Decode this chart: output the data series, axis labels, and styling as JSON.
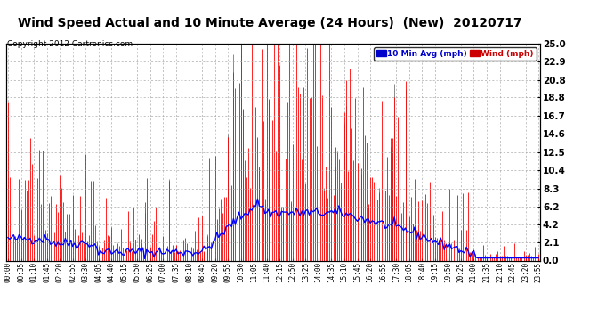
{
  "title": "Wind Speed Actual and 10 Minute Average (24 Hours)  (New)  20120717",
  "copyright": "Copyright 2012 Cartronics.com",
  "legend_labels": [
    "10 Min Avg (mph)",
    "Wind (mph)"
  ],
  "legend_colors": [
    "#0000cc",
    "#cc0000"
  ],
  "yticks": [
    0.0,
    2.1,
    4.2,
    6.2,
    8.3,
    10.4,
    12.5,
    14.6,
    16.7,
    18.8,
    20.8,
    22.9,
    25.0
  ],
  "ylim": [
    0.0,
    25.0
  ],
  "background_color": "#ffffff",
  "plot_bg_color": "#ffffff",
  "grid_color": "#aaaaaa",
  "title_fontsize": 10,
  "wind_color": "#ff0000",
  "avg_color": "#0000ff",
  "figwidth": 6.9,
  "figheight": 3.75,
  "dpi": 100
}
